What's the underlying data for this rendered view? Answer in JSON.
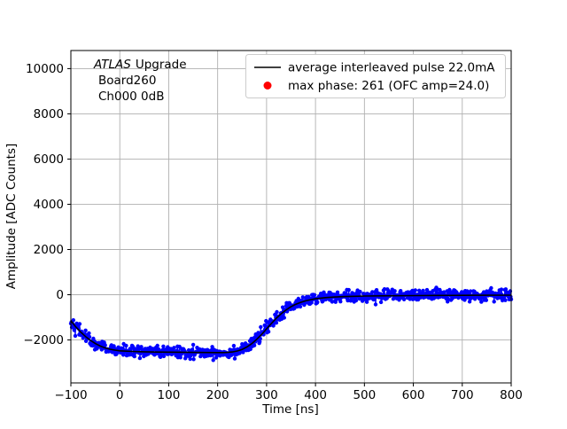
{
  "annotations": {
    "line1_italic": "ATLAS",
    "line1_rest": "Upgrade",
    "line2": "Board260",
    "line3": "Ch000 0dB"
  },
  "legend": {
    "position": "upper right",
    "entries": [
      {
        "label": "average interleaved pulse 22.0mA",
        "marker": "line",
        "color": "#000000"
      },
      {
        "label": "max phase: 261 (OFC amp=24.0)",
        "marker": "dot",
        "color": "#ff0000"
      }
    ]
  },
  "chart_data": {
    "type": "line",
    "title": "",
    "xlabel": "Time [ns]",
    "ylabel": "Amplitude [ADC Counts]",
    "xlim": [
      -100,
      800
    ],
    "ylim": [
      -3900,
      10800
    ],
    "xticks": [
      -100,
      0,
      100,
      200,
      300,
      400,
      500,
      600,
      700,
      800
    ],
    "yticks": [
      -2000,
      0,
      2000,
      4000,
      6000,
      8000,
      10000
    ],
    "grid": true,
    "grid_color": "#b0b0b0",
    "legend_position": "upper right",
    "colors": {
      "samples": "#0000ff",
      "average": "#000000",
      "max_phase": "#ff0000"
    },
    "series": [
      {
        "name": "average interleaved pulse 22.0mA",
        "color": "#000000",
        "x": [
          -100,
          -90,
          -80,
          -70,
          -60,
          -50,
          -40,
          -30,
          -20,
          -10,
          0,
          25,
          50,
          75,
          100,
          125,
          150,
          175,
          200,
          210,
          220,
          230,
          240,
          250,
          260,
          270,
          280,
          290,
          300,
          310,
          320,
          330,
          340,
          350,
          360,
          370,
          380,
          390,
          400,
          420,
          440,
          460,
          480,
          500,
          550,
          600,
          650,
          700,
          750,
          800
        ],
        "y": [
          -1150,
          -1420,
          -1650,
          -1850,
          -2020,
          -2160,
          -2270,
          -2350,
          -2410,
          -2450,
          -2480,
          -2510,
          -2525,
          -2535,
          -2540,
          -2545,
          -2550,
          -2555,
          -2560,
          -2558,
          -2550,
          -2530,
          -2490,
          -2420,
          -2310,
          -2160,
          -1970,
          -1750,
          -1510,
          -1270,
          -1040,
          -840,
          -670,
          -530,
          -420,
          -335,
          -270,
          -220,
          -180,
          -130,
          -100,
          -80,
          -70,
          -60,
          -45,
          -38,
          -32,
          -28,
          -24,
          -20
        ]
      },
      {
        "name": "interleaved pulse samples",
        "color": "#0000ff",
        "derived_from": "average plus gaussian noise",
        "noise_sigma": 130,
        "sample_step_ns": 1
      }
    ]
  }
}
